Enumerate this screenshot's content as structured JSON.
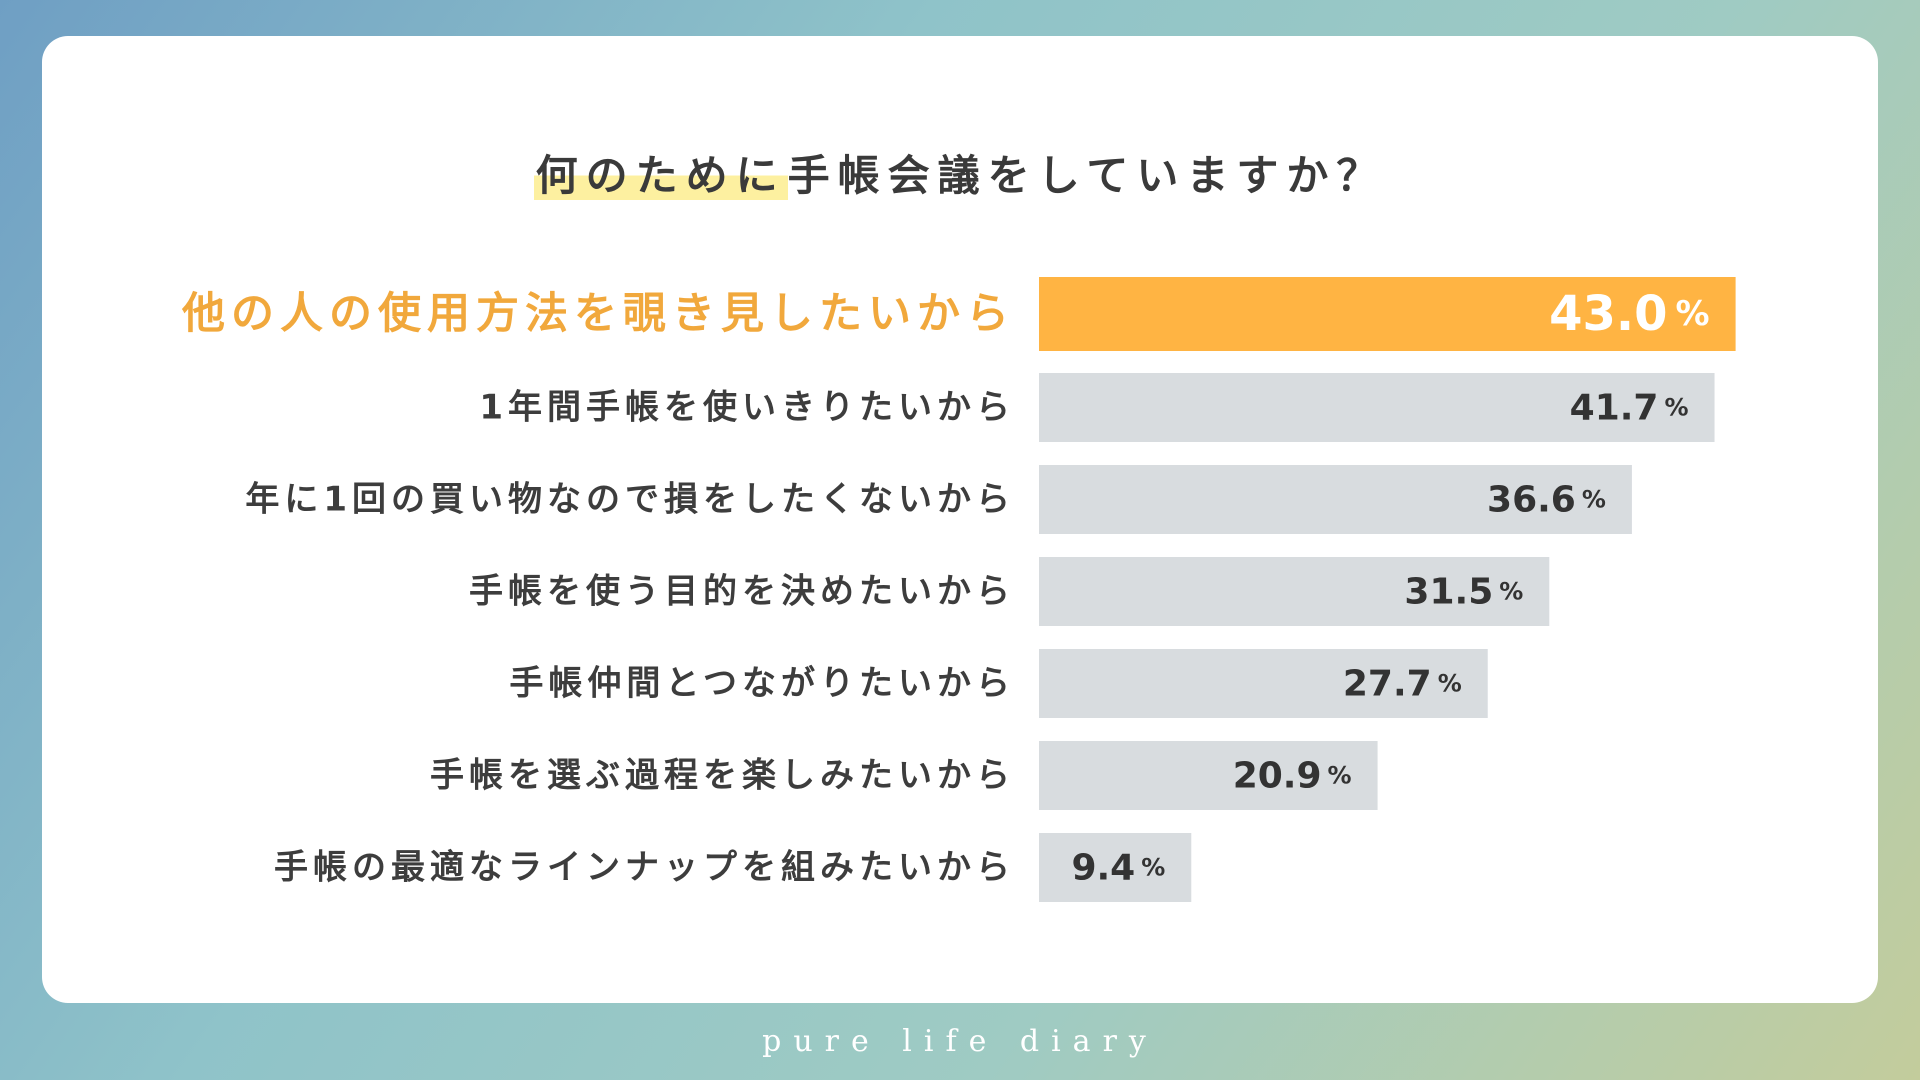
{
  "title": {
    "highlight": "何のために",
    "rest": "手帳会議をしていますか？"
  },
  "footer": "pure life diary",
  "colors": {
    "highlight_bar": "#ffb443",
    "highlight_label": "#f1a83c",
    "bar": "#d8dcdf",
    "title_marker": "#fdf0a0"
  },
  "chart_data": {
    "type": "bar",
    "orientation": "horizontal",
    "title": "何のために手帳会議をしていますか？",
    "unit": "%",
    "categories": [
      "他の人の使用方法を覗き見したいから",
      "1年間手帳を使いきりたいから",
      "年に1回の買い物なので損をしたくないから",
      "手帳を使う目的を決めたいから",
      "手帳仲間とつながりたいから",
      "手帳を選ぶ過程を楽しみたいから",
      "手帳の最適なラインナップを組みたいから"
    ],
    "values": [
      43.0,
      41.7,
      36.6,
      31.5,
      27.7,
      20.9,
      9.4
    ],
    "value_labels": [
      "43.0",
      "41.7",
      "36.6",
      "31.5",
      "27.7",
      "20.9",
      "9.4"
    ],
    "highlight_index": 0,
    "grid": false,
    "legend": "none"
  }
}
